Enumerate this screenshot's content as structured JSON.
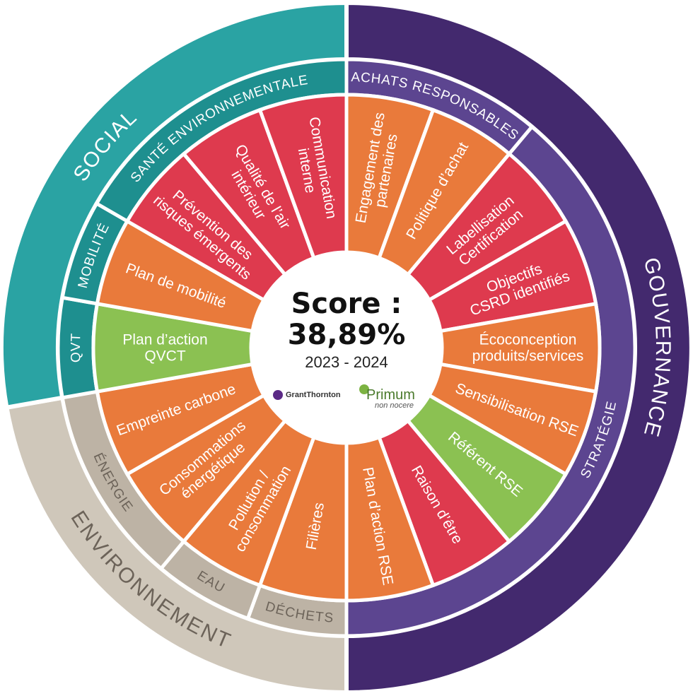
{
  "center": {
    "score_title": "Score :",
    "score_value": "38,89%",
    "years": "2023 - 2024",
    "logo_left": "GrantThornton",
    "logo_right_name": "Primum",
    "logo_right_tag": "non nocere"
  },
  "colors": {
    "red": "#DE3A4E",
    "orange": "#E97A3B",
    "green": "#8BC152",
    "teal": "#2AA3A3",
    "teal_dark": "#1E8F8F",
    "purple": "#43296E",
    "purple_light": "#5C4590",
    "gray": "#CFC7BA",
    "gray_dark": "#BDB3A5",
    "gray_text": "#6C6359"
  },
  "segments": [
    {
      "lines": [
        "Engagement des",
        "partenaires"
      ],
      "color": "orange"
    },
    {
      "lines": [
        "Politique d’achat"
      ],
      "color": "orange"
    },
    {
      "lines": [
        "Labellisation",
        "Certification"
      ],
      "color": "red"
    },
    {
      "lines": [
        "Objectifs",
        "CSRD identifiés"
      ],
      "color": "red"
    },
    {
      "lines": [
        "Écoconception",
        "produits/services"
      ],
      "color": "orange"
    },
    {
      "lines": [
        "Sensibilisation RSE"
      ],
      "color": "orange"
    },
    {
      "lines": [
        "Référent RSE"
      ],
      "color": "green"
    },
    {
      "lines": [
        "Raison d’être"
      ],
      "color": "red"
    },
    {
      "lines": [
        "Plan d’action RSE"
      ],
      "color": "orange"
    },
    {
      "lines": [
        "Filières"
      ],
      "color": "orange"
    },
    {
      "lines": [
        "Pollution /",
        "consommation"
      ],
      "color": "orange"
    },
    {
      "lines": [
        "Consommations",
        "énergétique"
      ],
      "color": "orange"
    },
    {
      "lines": [
        "Empreinte carbone"
      ],
      "color": "orange"
    },
    {
      "lines": [
        "Plan d’action",
        "QVCT"
      ],
      "color": "green"
    },
    {
      "lines": [
        "Plan de mobilité"
      ],
      "color": "orange"
    },
    {
      "lines": [
        "Prévention des",
        "risques émergents"
      ],
      "color": "red"
    },
    {
      "lines": [
        "Qualité de l’air",
        "intérieur"
      ],
      "color": "red"
    },
    {
      "lines": [
        "Communication",
        "interne"
      ],
      "color": "red"
    }
  ],
  "subcategories": [
    {
      "label": "ACHATS RESPONSABLES",
      "from": 0,
      "to": 2
    },
    {
      "label": "STRATÉGIE",
      "from": 2,
      "to": 9
    },
    {
      "label": "DÉCHETS",
      "from": 9,
      "to": 10
    },
    {
      "label": "EAU",
      "from": 10,
      "to": 11
    },
    {
      "label": "ÉNERGIE",
      "from": 11,
      "to": 13
    },
    {
      "label": "QVT",
      "from": 13,
      "to": 14
    },
    {
      "label": "MOBILITÉ",
      "from": 14,
      "to": 15
    },
    {
      "label": "SANTÉ ENVIRONNEMENTALE",
      "from": 15,
      "to": 18
    }
  ],
  "domains": [
    {
      "label": "GOUVERNANCE",
      "from": 0,
      "to": 9
    },
    {
      "label": "ENVIRONNEMENT",
      "from": 9,
      "to": 13
    },
    {
      "label": "SOCIAL",
      "from": 13,
      "to": 18
    }
  ]
}
